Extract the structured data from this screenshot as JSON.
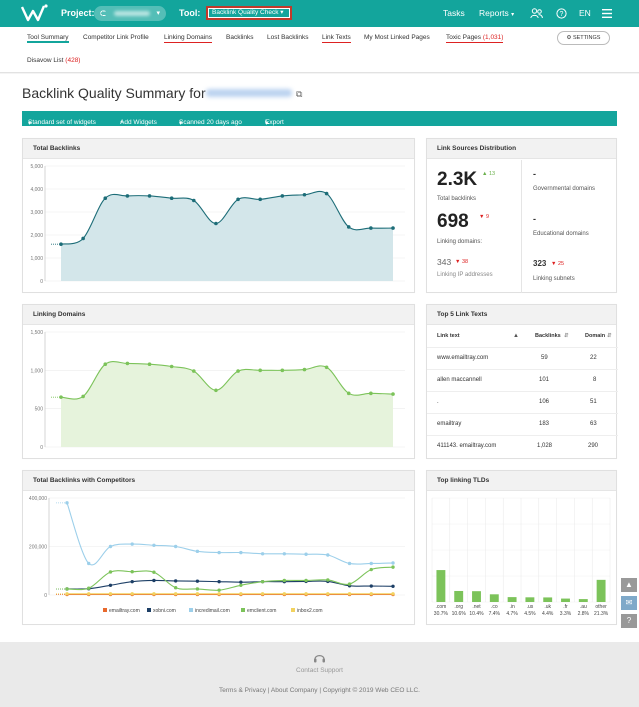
{
  "topbar": {
    "project_label": "Project:",
    "tool_label": "Tool:",
    "tool_value": "Backlink Quality Check",
    "tasks": "Tasks",
    "reports": "Reports",
    "lang": "EN"
  },
  "tabs": [
    {
      "label": "Tool Summary"
    },
    {
      "label": "Competitor Link Profile"
    },
    {
      "label": "Linking Domains"
    },
    {
      "label": "Backlinks"
    },
    {
      "label": "Lost Backlinks"
    },
    {
      "label": "Link Texts"
    },
    {
      "label": "My Most Linked Pages"
    },
    {
      "label": "Toxic Pages",
      "count": "(1,031)"
    },
    {
      "label": "Disavow List",
      "count": "(428)"
    }
  ],
  "settings_label": "SETTINGS",
  "page_title": "Backlink Quality Summary for",
  "toolbar": {
    "widgets": "Standard set of widgets",
    "add": "Add Widgets",
    "scanned": "Scanned 20 days ago",
    "export": "Export"
  },
  "panels": {
    "total_backlinks": "Total Backlinks",
    "link_sources": "Link Sources Distribution",
    "linking_domains": "Linking Domains",
    "top_link_texts": "Top 5 Link Texts",
    "competitors": "Total Backlinks with Competitors",
    "tlds": "Top linking TLDs"
  },
  "link_sources": {
    "total_backlinks_value": "2.3K",
    "total_backlinks_delta": "13",
    "total_backlinks_label": "Total backlinks",
    "linking_domains_value": "698",
    "linking_domains_delta": "9",
    "linking_domains_label": "Linking domains:",
    "ip_value": "343",
    "ip_delta": "38",
    "ip_label": "Linking IP addresses",
    "gov_value": "-",
    "gov_label": "Governmental domains",
    "edu_value": "-",
    "edu_label": "Educational domains",
    "subnets_value": "323",
    "subnets_delta": "25",
    "subnets_label": "Linking subnets"
  },
  "link_texts": {
    "headers": {
      "text": "Link text",
      "backlinks": "Backlinks",
      "domain": "Domain"
    },
    "rows": [
      {
        "text": "www.emailtray.com",
        "backlinks": "59",
        "domain": "22"
      },
      {
        "text": "allen maccannell",
        "backlinks": "101",
        "domain": "8"
      },
      {
        "text": ".",
        "backlinks": "106",
        "domain": "51"
      },
      {
        "text": "emailtray",
        "backlinks": "183",
        "domain": "63"
      },
      {
        "text": "411143. emailtray.com",
        "backlinks": "1,028",
        "domain": "290"
      }
    ]
  },
  "footer": {
    "support": "Contact Support",
    "links": "Terms & Privacy | About Company | Copyright © 2019 Web CEO LLC."
  },
  "colors": {
    "accent": "#13a59c",
    "backlinks_line": "#1d6d78",
    "backlinks_fill": "#d3e6ea",
    "domains_line": "#7cc35a",
    "domains_fill": "#e6f3dc",
    "tld_bar": "#7cc35a",
    "alert": "#d22222"
  },
  "chart_data": [
    {
      "id": "total_backlinks",
      "type": "area",
      "title": "Total Backlinks",
      "ylim": [
        0,
        5000
      ],
      "yticks": [
        "5,000",
        "4,000",
        "3,000",
        "2,000",
        "1,000",
        "0"
      ],
      "values": [
        1600,
        1850,
        3600,
        3700,
        3700,
        3600,
        3500,
        2500,
        3550,
        3550,
        3700,
        3750,
        3800,
        2350,
        2300,
        2300
      ]
    },
    {
      "id": "linking_domains",
      "type": "area",
      "title": "Linking Domains",
      "ylim": [
        0,
        1500
      ],
      "yticks": [
        "1,500",
        "1,000",
        "500",
        "0"
      ],
      "values": [
        650,
        660,
        1080,
        1090,
        1080,
        1050,
        990,
        740,
        990,
        1000,
        1000,
        1010,
        1040,
        700,
        700,
        690
      ]
    },
    {
      "id": "competitors",
      "type": "line",
      "title": "Total Backlinks with Competitors",
      "ylim": [
        0,
        400000
      ],
      "yticks": [
        "400,000",
        "200,000",
        "0"
      ],
      "legend_position": "bottom",
      "series": [
        {
          "name": "emailtray.com",
          "color": "#e8692c",
          "values": [
            2300,
            2300,
            2300,
            2300,
            2300,
            2300,
            2300,
            2300,
            2300,
            2300,
            2300,
            2300,
            2300,
            2300,
            2300,
            2300
          ]
        },
        {
          "name": "xobni.com",
          "color": "#1d3f66",
          "values": [
            25000,
            26000,
            40000,
            55000,
            60000,
            58000,
            57000,
            55000,
            53000,
            55000,
            55000,
            56000,
            56000,
            38000,
            37000,
            36000
          ]
        },
        {
          "name": "incredimail.com",
          "color": "#9ccfea",
          "values": [
            380000,
            130000,
            200000,
            210000,
            205000,
            200000,
            180000,
            175000,
            175000,
            170000,
            170000,
            168000,
            165000,
            130000,
            130000,
            132000
          ]
        },
        {
          "name": "emclient.com",
          "color": "#7cc35a",
          "values": [
            25000,
            28000,
            95000,
            96000,
            94000,
            30000,
            25000,
            20000,
            40000,
            55000,
            60000,
            60000,
            62000,
            45000,
            105000,
            115000
          ]
        },
        {
          "name": "inbox2.com",
          "color": "#f2d25f",
          "values": [
            5000,
            5000,
            5000,
            5000,
            5000,
            5000,
            5000,
            5000,
            5000,
            5000,
            5000,
            5000,
            5000,
            5000,
            5000,
            5000
          ]
        }
      ]
    },
    {
      "id": "tlds",
      "type": "bar",
      "title": "Top linking TLDs",
      "categories": [
        ".com",
        ".org",
        ".net",
        ".co",
        ".in",
        ".us",
        ".uk",
        ".fr",
        ".au",
        "other"
      ],
      "values": [
        30.7,
        10.6,
        10.4,
        7.4,
        4.7,
        4.5,
        4.4,
        3.3,
        2.8,
        21.3
      ],
      "labels": [
        "30.7%",
        "10.6%",
        "10.4%",
        "7.4%",
        "4.7%",
        "4.5%",
        "4.4%",
        "3.3%",
        "2.8%",
        "21.3%"
      ]
    }
  ]
}
